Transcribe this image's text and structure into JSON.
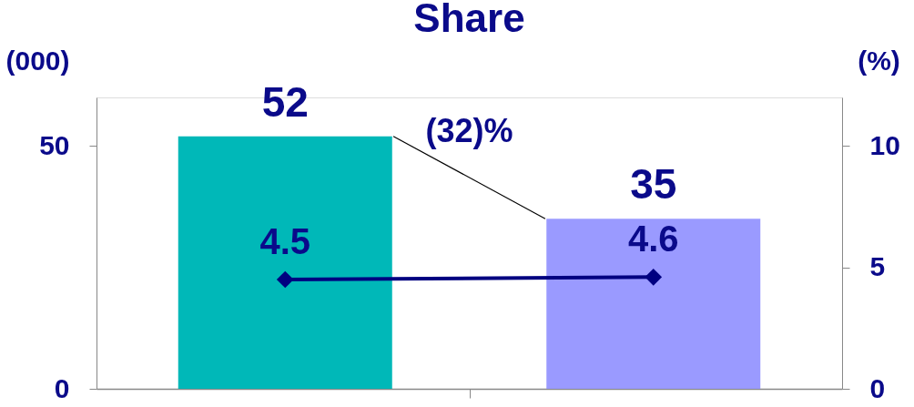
{
  "chart_data": {
    "type": "bar",
    "title": "Share",
    "ylabel": "(000)",
    "y2label": "(%)",
    "categories": [
      null,
      null
    ],
    "series": [
      {
        "type": "bar",
        "colors": [
          "#00b8b8",
          "#9a9aff"
        ],
        "values": [
          52,
          35
        ]
      },
      {
        "type": "line",
        "axis": "y2",
        "color": "#000080",
        "values": [
          4.5,
          4.6
        ]
      }
    ],
    "ylim": [
      0,
      60
    ],
    "yticks": [
      0,
      50
    ],
    "y2lim": [
      0,
      12
    ],
    "y2ticks": [
      0,
      5,
      10
    ],
    "data_labels": true,
    "marker": "diamond",
    "line_style": "solid",
    "grid": false,
    "annotations": [
      "(32)%"
    ]
  }
}
